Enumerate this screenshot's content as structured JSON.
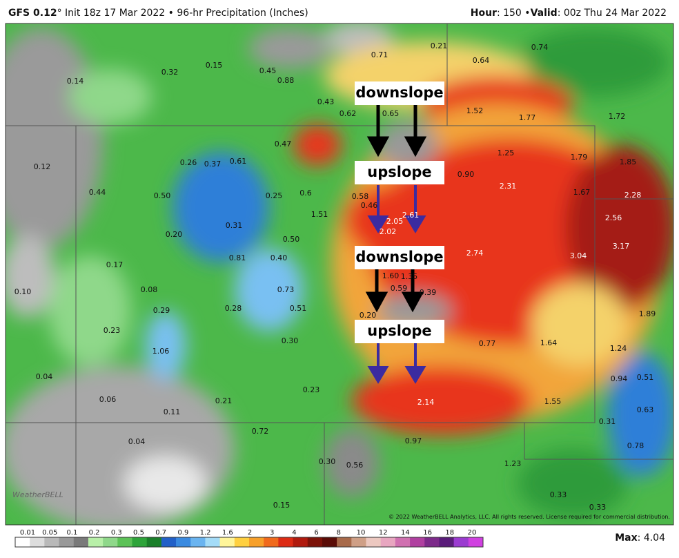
{
  "header": {
    "model": "GFS 0.12",
    "title_rest": "° Init 18z 17 Mar 2022 • 96-hr Precipitation (Inches)",
    "hour_label": "Hour",
    "hour_rest": ": 150 •",
    "valid_label": "Valid",
    "valid_rest": ": 00z Thu 24 Mar 2022"
  },
  "map": {
    "labels": [
      "0.21",
      "0.74",
      "0.71",
      "0.64",
      "0.32",
      "0.15",
      "0.45",
      "0.88",
      "0.14",
      "0.43",
      "0.62",
      "0.65",
      "1.52",
      "1.77",
      "1.72",
      "0.47",
      "1.25",
      "1.79",
      "1.85",
      "0.12",
      "0.26",
      "0.37",
      "0.61",
      "0.90",
      "2.31",
      "1.67",
      "2.28",
      "0.44",
      "0.50",
      "0.25",
      "0.6",
      "0.58",
      "0.46",
      "1.51",
      "2.05",
      "2.61",
      "2.56",
      "2.02",
      "0.31",
      "0.20",
      "0.50",
      "3.17",
      "2.74",
      "3.04",
      "0.81",
      "0.40",
      "0.17",
      "1.60",
      "1.35",
      "0.10",
      "0.08",
      "0.73",
      "0.59",
      "0.39",
      "0.29",
      "0.28",
      "0.51",
      "0.20",
      "1.89",
      "0.23",
      "0.30",
      "0.77",
      "1.64",
      "1.24",
      "1.06",
      "0.04",
      "0.94",
      "0.51",
      "0.23",
      "0.06",
      "0.21",
      "2.14",
      "1.55",
      "0.11",
      "0.63",
      "0.31",
      "0.72",
      "0.04",
      "0.97",
      "0.78",
      "0.30",
      "0.56",
      "1.23",
      "0.33",
      "0.33",
      "0.15"
    ],
    "annotations": [
      "downslope",
      "upslope",
      "downslope",
      "upslope"
    ],
    "copyright": "© 2022 WeatherBELL Analytics, LLC. All rights reserved. License required for commercial distribution.",
    "logo": "WeatherBELL"
  },
  "legend": {
    "ticks": [
      "0.01",
      "0.05",
      "0.1",
      "0.2",
      "0.3",
      "0.5",
      "0.7",
      "0.9",
      "1.2",
      "1.6",
      "2",
      "3",
      "4",
      "6",
      "8",
      "10",
      "12",
      "14",
      "16",
      "18",
      "20"
    ],
    "max_label": "Max",
    "max_rest": ": 4.04"
  }
}
